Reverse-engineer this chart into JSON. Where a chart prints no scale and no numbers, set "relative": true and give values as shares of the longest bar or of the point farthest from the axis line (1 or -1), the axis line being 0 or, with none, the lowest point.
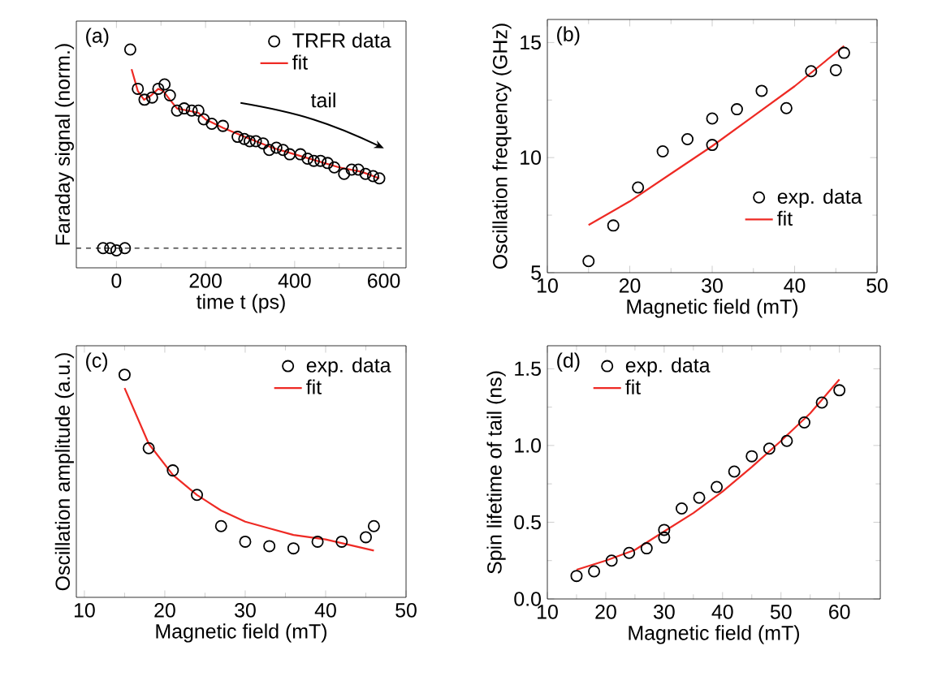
{
  "chart_data": [
    {
      "type": "scatter",
      "relative": true,
      "xlabel": "time t (ps)",
      "ylabel": "Faraday signal (norm.)",
      "xlim": [
        -90,
        650
      ],
      "xticks": [
        0,
        200,
        400,
        600
      ],
      "tick_labels": "x",
      "legend": "top right",
      "annotations": [
        "(a)",
        "tail"
      ],
      "ref_lines": [
        {
          "axis": "y",
          "value": 0.09,
          "color": "#444444",
          "line_style": "dashed"
        }
      ],
      "series": [
        {
          "name": "TRFR data",
          "marker": "circle",
          "color": "#000000",
          "x": [
            -30,
            -14,
            0,
            19,
            31,
            48,
            63,
            80,
            94,
            108,
            120,
            136,
            152,
            169,
            184,
            196,
            214,
            239,
            272,
            287,
            299,
            313,
            329,
            343,
            359,
            374,
            389,
            413,
            429,
            443,
            458,
            474,
            489,
            511,
            528,
            543,
            559,
            576,
            590
          ],
          "values": [
            0.09,
            0.09,
            0.08,
            0.09,
            1.0,
            0.82,
            0.77,
            0.78,
            0.82,
            0.84,
            0.79,
            0.72,
            0.73,
            0.72,
            0.72,
            0.68,
            0.66,
            0.65,
            0.6,
            0.59,
            0.58,
            0.58,
            0.57,
            0.54,
            0.55,
            0.54,
            0.52,
            0.52,
            0.5,
            0.49,
            0.49,
            0.48,
            0.46,
            0.43,
            0.45,
            0.45,
            0.43,
            0.42,
            0.41
          ]
        },
        {
          "name": "fit",
          "type": "line",
          "color": "#ee2a24",
          "x": [
            34,
            48,
            62,
            78,
            94,
            105,
            120,
            136,
            160,
            184,
            200,
            240,
            300,
            350,
            400,
            450,
            500,
            550,
            590
          ],
          "values": [
            0.91,
            0.81,
            0.77,
            0.79,
            0.82,
            0.81,
            0.77,
            0.73,
            0.72,
            0.71,
            0.68,
            0.64,
            0.59,
            0.55,
            0.52,
            0.49,
            0.46,
            0.44,
            0.41
          ]
        }
      ]
    },
    {
      "type": "scatter",
      "xlabel": "Magnetic field (mT)",
      "ylabel": "Oscillation frequency (GHz)",
      "xlim": [
        10,
        50
      ],
      "xticks": [
        10,
        20,
        30,
        40,
        50
      ],
      "ylim": [
        5,
        16
      ],
      "yticks": [
        5,
        10,
        15
      ],
      "legend": "bottom right",
      "annotations": [
        "(b)"
      ],
      "series": [
        {
          "name": "exp. data",
          "marker": "circle",
          "color": "#000000",
          "x": [
            15,
            18,
            21,
            24,
            27,
            30,
            30,
            33,
            36,
            39,
            42,
            45,
            46
          ],
          "values": [
            5.5,
            7.05,
            8.7,
            10.27,
            10.8,
            11.7,
            10.55,
            12.1,
            12.9,
            12.15,
            13.75,
            13.8,
            14.55
          ]
        },
        {
          "name": "fit",
          "type": "line",
          "color": "#ee2a24",
          "x": [
            15,
            20,
            25,
            30,
            35,
            40,
            46
          ],
          "values": [
            7.07,
            8.1,
            9.3,
            10.5,
            11.8,
            13.1,
            14.85
          ]
        }
      ]
    },
    {
      "type": "scatter",
      "relative": true,
      "xlabel": "Magnetic field (mT)",
      "ylabel": "Oscillation amplitude (a.u.)",
      "xlim": [
        9,
        50
      ],
      "xticks": [
        10,
        20,
        30,
        40,
        50
      ],
      "tick_labels": "x",
      "legend": "top right",
      "annotations": [
        "(c)"
      ],
      "series": [
        {
          "name": "exp. data",
          "marker": "circle",
          "color": "#000000",
          "x": [
            15,
            18,
            21,
            24,
            27,
            30,
            33,
            36,
            39,
            42,
            45,
            46
          ],
          "values": [
            1.0,
            0.67,
            0.57,
            0.46,
            0.32,
            0.25,
            0.23,
            0.22,
            0.25,
            0.25,
            0.27,
            0.32
          ]
        },
        {
          "name": "fit",
          "type": "line",
          "color": "#ee2a24",
          "x": [
            15,
            18,
            21,
            24,
            27,
            30,
            33,
            36,
            40,
            46
          ],
          "values": [
            0.94,
            0.69,
            0.55,
            0.46,
            0.39,
            0.34,
            0.31,
            0.28,
            0.26,
            0.21
          ]
        }
      ]
    },
    {
      "type": "scatter",
      "xlabel": "Magnetic field (mT)",
      "ylabel": "Spin lifetime of tail (ns)",
      "xlim": [
        10,
        67
      ],
      "xticks": [
        10,
        20,
        30,
        40,
        50,
        60
      ],
      "ylim": [
        0,
        1.65
      ],
      "yticks": [
        {
          "value": 0,
          "label": "0.0"
        },
        0.5,
        {
          "value": 1,
          "label": "1.0"
        },
        1.5
      ],
      "legend": "top left",
      "annotations": [
        "(d)"
      ],
      "series": [
        {
          "name": "exp. data",
          "marker": "circle",
          "color": "#000000",
          "x": [
            15,
            18,
            21,
            24,
            27,
            30,
            30,
            33,
            36,
            39,
            42,
            45,
            48,
            51,
            54,
            57,
            60
          ],
          "values": [
            0.15,
            0.18,
            0.25,
            0.3,
            0.33,
            0.45,
            0.4,
            0.59,
            0.66,
            0.73,
            0.83,
            0.93,
            0.98,
            1.03,
            1.15,
            1.28,
            1.36
          ]
        },
        {
          "name": "fit",
          "type": "line",
          "color": "#ee2a24",
          "x": [
            15,
            20,
            25,
            30,
            35,
            40,
            45,
            50,
            55,
            60
          ],
          "values": [
            0.19,
            0.25,
            0.32,
            0.44,
            0.56,
            0.7,
            0.86,
            1.03,
            1.21,
            1.43
          ]
        }
      ]
    }
  ]
}
